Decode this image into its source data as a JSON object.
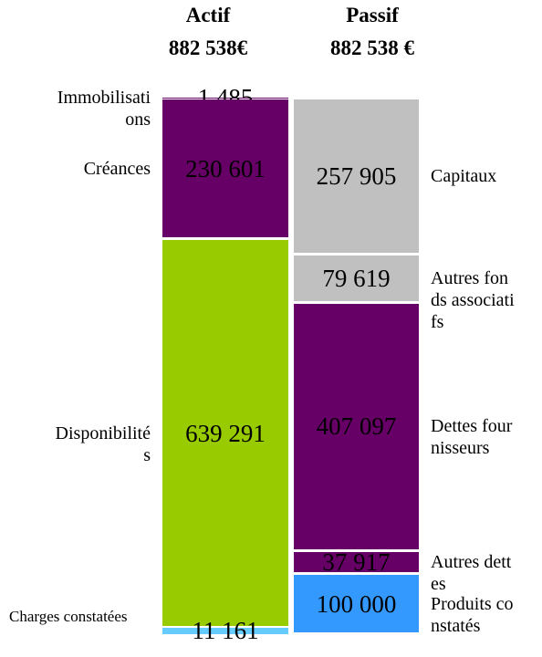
{
  "chart_data": {
    "type": "stacked-column",
    "columns": [
      {
        "title": "Actif",
        "total": {
          "value": 882538,
          "label": "882 538€"
        },
        "side": "left",
        "segments": [
          {
            "name": "Immobilisations",
            "value": 1485,
            "value_label": "1 485",
            "color": "#660066"
          },
          {
            "name": "Créances",
            "value": 230601,
            "value_label": "230 601",
            "color": "#660066"
          },
          {
            "name": "Disponibilités",
            "value": 639291,
            "value_label": "639 291",
            "color": "#99cc00"
          },
          {
            "name": "Charges constatées",
            "value": 11161,
            "value_label": "11 161",
            "color": "#66ccff"
          }
        ]
      },
      {
        "title": "Passif",
        "total": {
          "value": 882538,
          "label": "882 538 €"
        },
        "side": "right",
        "segments": [
          {
            "name": "Capitaux",
            "value": 257905,
            "value_label": "257 905",
            "color": "#c0c0c0"
          },
          {
            "name": "Autres fonds associatifs",
            "value": 79619,
            "value_label": "79 619",
            "color": "#c0c0c0"
          },
          {
            "name": "Dettes fournisseurs",
            "value": 407097,
            "value_label": "407 097",
            "color": "#660066"
          },
          {
            "name": "Autres dettes",
            "value": 37917,
            "value_label": "37 917",
            "color": "#660066"
          },
          {
            "name": "Produits constatés",
            "value": 100000,
            "value_label": "100 000",
            "color": "#3399ff"
          }
        ]
      }
    ]
  }
}
